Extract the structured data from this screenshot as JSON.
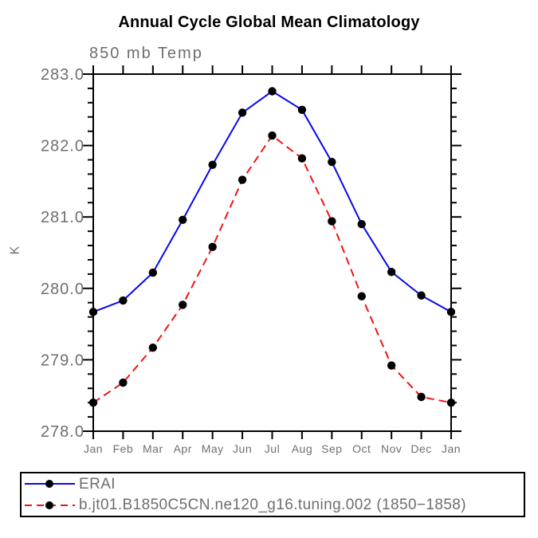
{
  "chart_data": {
    "type": "line",
    "title": "Annual Cycle Global Mean Climatology",
    "subtitle": "850 mb Temp",
    "ylabel": "K",
    "categories": [
      "Jan",
      "Feb",
      "Mar",
      "Apr",
      "May",
      "Jun",
      "Jul",
      "Aug",
      "Sep",
      "Oct",
      "Nov",
      "Dec",
      "Jan"
    ],
    "ylim": [
      278.0,
      283.0
    ],
    "yticks": [
      278.0,
      279.0,
      280.0,
      281.0,
      282.0,
      283.0
    ],
    "ytick_labels": [
      "278.0",
      "279.0",
      "280.0",
      "281.0",
      "282.0",
      "283.0"
    ],
    "ytick_minor_step": 0.2,
    "grid": false,
    "legend_position": "bottom-left-box",
    "axis_color": "#000000",
    "text_color": "#6e6e6e",
    "marker_color": "#000000",
    "series": [
      {
        "name": "ERAI",
        "color": "#0808f0",
        "line_style": "solid",
        "marker": "filled-circle",
        "values": [
          279.67,
          279.83,
          280.22,
          280.96,
          281.73,
          282.46,
          282.76,
          282.5,
          281.77,
          280.9,
          280.23,
          279.9,
          279.67
        ]
      },
      {
        "name": "b.jt01.B1850C5CN.ne120_g16.tuning.002 (1850−1858)",
        "color": "#f21212",
        "line_style": "dashed",
        "marker": "filled-circle",
        "values": [
          278.4,
          278.68,
          279.17,
          279.77,
          280.58,
          281.52,
          282.14,
          281.82,
          280.94,
          279.89,
          278.92,
          278.48,
          278.4
        ]
      }
    ]
  }
}
